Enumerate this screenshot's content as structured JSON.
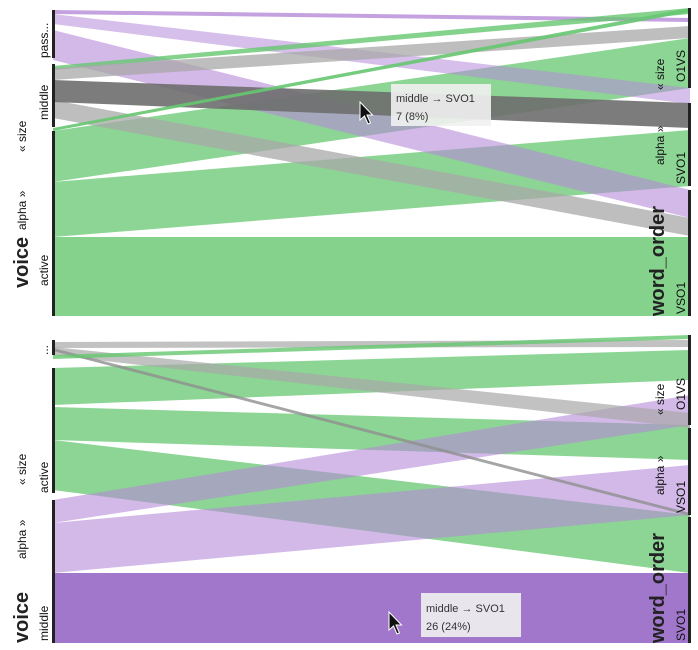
{
  "colors": {
    "green": "#66c770",
    "purple": "#b58bd8",
    "gray": "#a8a8a8",
    "dark_gray": "#6e6e6e",
    "dark_purple": "#9c70c8",
    "axis": "#222222"
  },
  "chart_data": [
    {
      "type": "parallel_sets",
      "left_axis": "voice",
      "right_axis": "word_order",
      "left_categories": [
        "pass...",
        "middle",
        "« size",
        "alpha »",
        "active"
      ],
      "right_categories": [
        "« size",
        "O1VS",
        "alpha »",
        "SVO1",
        "VSO1"
      ],
      "highlighted_flow": {
        "from": "middle",
        "to": "SVO1"
      },
      "tooltip": {
        "line1": "middle → SVO1",
        "line2": "7 (8%)"
      },
      "cursor_icon": "arrow-cursor-icon"
    },
    {
      "type": "parallel_sets",
      "left_axis": "voice",
      "right_axis": "word_order",
      "left_categories": [
        "...",
        "« size",
        "active",
        "alpha »",
        "middle"
      ],
      "right_categories": [
        "« size",
        "O1VS",
        "alpha »",
        "VSO1",
        "SVO1"
      ],
      "highlighted_flow": {
        "from": "middle",
        "to": "SVO1"
      },
      "tooltip": {
        "line1": "middle → SVO1",
        "line2": "26 (24%)"
      },
      "cursor_icon": "arrow-cursor-icon"
    }
  ]
}
